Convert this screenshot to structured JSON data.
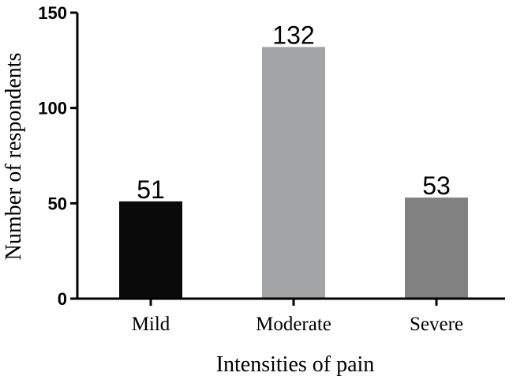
{
  "chart_data": {
    "type": "bar",
    "title": "",
    "categories": [
      "Mild",
      "Moderate",
      "Severe"
    ],
    "values": [
      51,
      132,
      53
    ],
    "data_labels": [
      "51",
      "132",
      "53"
    ],
    "colors": [
      "#0a0a0a",
      "#a3a4a6",
      "#808180"
    ],
    "xlabel": "Intensities of pain",
    "ylabel": "Number of respondents",
    "ylim": [
      0,
      150
    ],
    "yticks": [
      0,
      50,
      100,
      150
    ],
    "grid": false,
    "legend": "none"
  }
}
